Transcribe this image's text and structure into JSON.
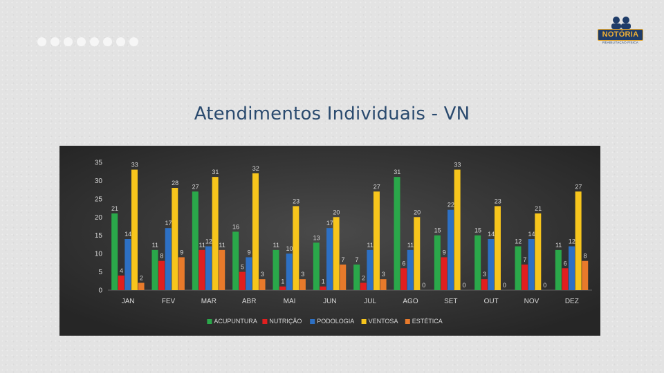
{
  "page": {
    "title": "Atendimentos Individuais - VN",
    "logo_text": "NOTÓRIA",
    "logo_subtitle": "REABILITAÇÃO FÍSICA",
    "dot_count": 8
  },
  "chart_data": {
    "type": "bar",
    "title": "",
    "xlabel": "",
    "ylabel": "",
    "ylim": [
      0,
      35
    ],
    "yticks": [
      0,
      5,
      10,
      15,
      20,
      25,
      30,
      35
    ],
    "grid": false,
    "legend_position": "bottom",
    "categories": [
      "JAN",
      "FEV",
      "MAR",
      "ABR",
      "MAI",
      "JUN",
      "JUL",
      "AGO",
      "SET",
      "OUT",
      "NOV",
      "DEZ"
    ],
    "series": [
      {
        "name": "ACUPUNTURA",
        "color": "#2aa84a",
        "values": [
          21,
          11,
          27,
          16,
          11,
          13,
          7,
          31,
          15,
          15,
          12,
          11
        ]
      },
      {
        "name": "NUTRIÇÃO",
        "color": "#e01f1f",
        "values": [
          4,
          8,
          11,
          5,
          1,
          1,
          2,
          6,
          9,
          3,
          7,
          6
        ]
      },
      {
        "name": "PODOLOGIA",
        "color": "#2d70c4",
        "values": [
          14,
          17,
          12,
          9,
          10,
          17,
          11,
          11,
          22,
          14,
          14,
          12
        ]
      },
      {
        "name": "VENTOSA",
        "color": "#f7c51c",
        "values": [
          33,
          28,
          31,
          32,
          23,
          20,
          27,
          20,
          33,
          23,
          21,
          27
        ]
      },
      {
        "name": "ESTÉTICA",
        "color": "#e87a2b",
        "values": [
          2,
          9,
          11,
          3,
          3,
          7,
          3,
          0,
          0,
          0,
          0,
          8
        ]
      }
    ]
  }
}
